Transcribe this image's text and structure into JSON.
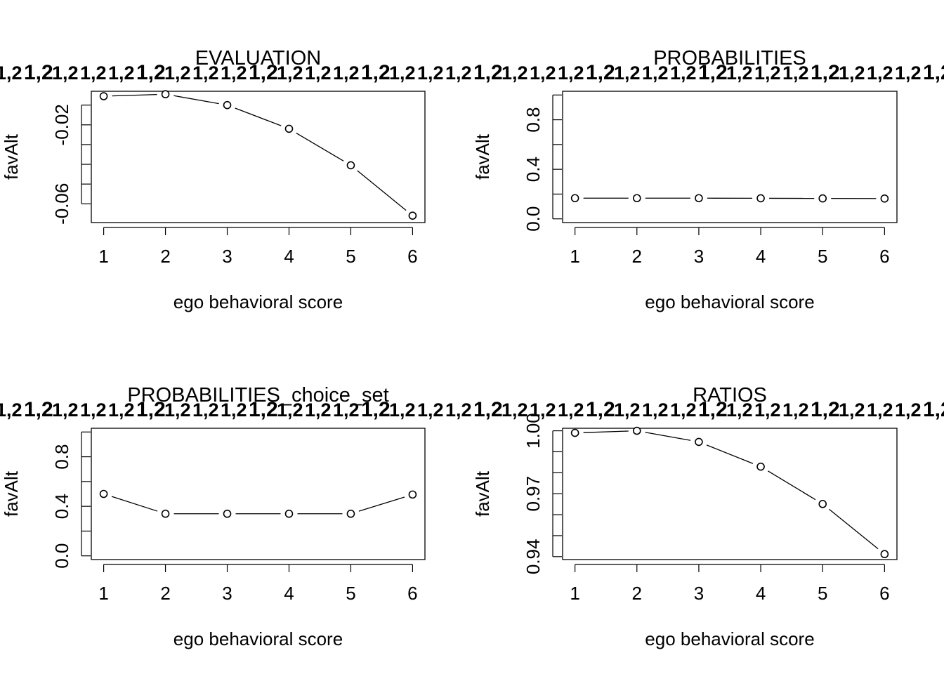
{
  "subtitle_pattern": "1,2",
  "chart_data": [
    {
      "type": "line",
      "title": "EVALUATION",
      "xlabel": "ego behavioral score",
      "ylabel": "favAlt",
      "x": [
        1,
        2,
        3,
        4,
        5,
        6
      ],
      "series": [
        {
          "values": [
            -0.0055,
            -0.0045,
            -0.01,
            -0.022,
            -0.0405,
            -0.066
          ]
        }
      ],
      "xlim": [
        0.8,
        6.2
      ],
      "ylim": [
        -0.0695,
        -0.003
      ],
      "xticks": [
        "1",
        "2",
        "3",
        "4",
        "5",
        "6"
      ],
      "yticks_labeled": [
        -0.02,
        -0.06
      ],
      "ytick_labels": [
        "-0.02",
        "-0.06"
      ],
      "yticks_minor": [
        -0.01,
        -0.03,
        -0.04,
        -0.05
      ],
      "grid": false,
      "marker": "open-circle"
    },
    {
      "type": "line",
      "title": "PROBABILITIES",
      "xlabel": "ego behavioral score",
      "ylabel": "favAlt",
      "x": [
        1,
        2,
        3,
        4,
        5,
        6
      ],
      "series": [
        {
          "values": [
            0.167,
            0.167,
            0.167,
            0.166,
            0.165,
            0.164
          ]
        }
      ],
      "xlim": [
        0.8,
        6.2
      ],
      "ylim": [
        -0.03,
        1.03
      ],
      "xticks": [
        "1",
        "2",
        "3",
        "4",
        "5",
        "6"
      ],
      "yticks_labeled": [
        0.0,
        0.4,
        0.8
      ],
      "ytick_labels": [
        "0.0",
        "0.4",
        "0.8"
      ],
      "yticks_minor": [
        0.2,
        0.6,
        1.0
      ],
      "grid": false,
      "marker": "open-circle"
    },
    {
      "type": "line",
      "title": "PROBABILITIES_choice_set",
      "xlabel": "ego behavioral score",
      "ylabel": "favAlt",
      "x": [
        1,
        2,
        3,
        4,
        5,
        6
      ],
      "series": [
        {
          "values": [
            0.5,
            0.34,
            0.34,
            0.34,
            0.34,
            0.495
          ]
        }
      ],
      "xlim": [
        0.8,
        6.2
      ],
      "ylim": [
        -0.03,
        1.03
      ],
      "xticks": [
        "1",
        "2",
        "3",
        "4",
        "5",
        "6"
      ],
      "yticks_labeled": [
        0.0,
        0.4,
        0.8
      ],
      "ytick_labels": [
        "0.0",
        "0.4",
        "0.8"
      ],
      "yticks_minor": [
        0.2,
        0.6,
        1.0
      ],
      "grid": false,
      "marker": "open-circle"
    },
    {
      "type": "line",
      "title": "RATIOS",
      "xlabel": "ego behavioral score",
      "ylabel": "favAlt",
      "x": [
        1,
        2,
        3,
        4,
        5,
        6
      ],
      "series": [
        {
          "values": [
            0.999,
            1.0,
            0.9947,
            0.9829,
            0.9651,
            0.9412
          ]
        }
      ],
      "xlim": [
        0.8,
        6.2
      ],
      "ylim": [
        0.9386,
        1.0012
      ],
      "xticks": [
        "1",
        "2",
        "3",
        "4",
        "5",
        "6"
      ],
      "yticks_labeled": [
        0.94,
        0.97,
        1.0
      ],
      "ytick_labels": [
        "0.94",
        "0.97",
        "1.00"
      ],
      "yticks_minor": [
        0.95,
        0.96,
        0.98,
        0.99
      ],
      "grid": false,
      "marker": "open-circle"
    }
  ]
}
